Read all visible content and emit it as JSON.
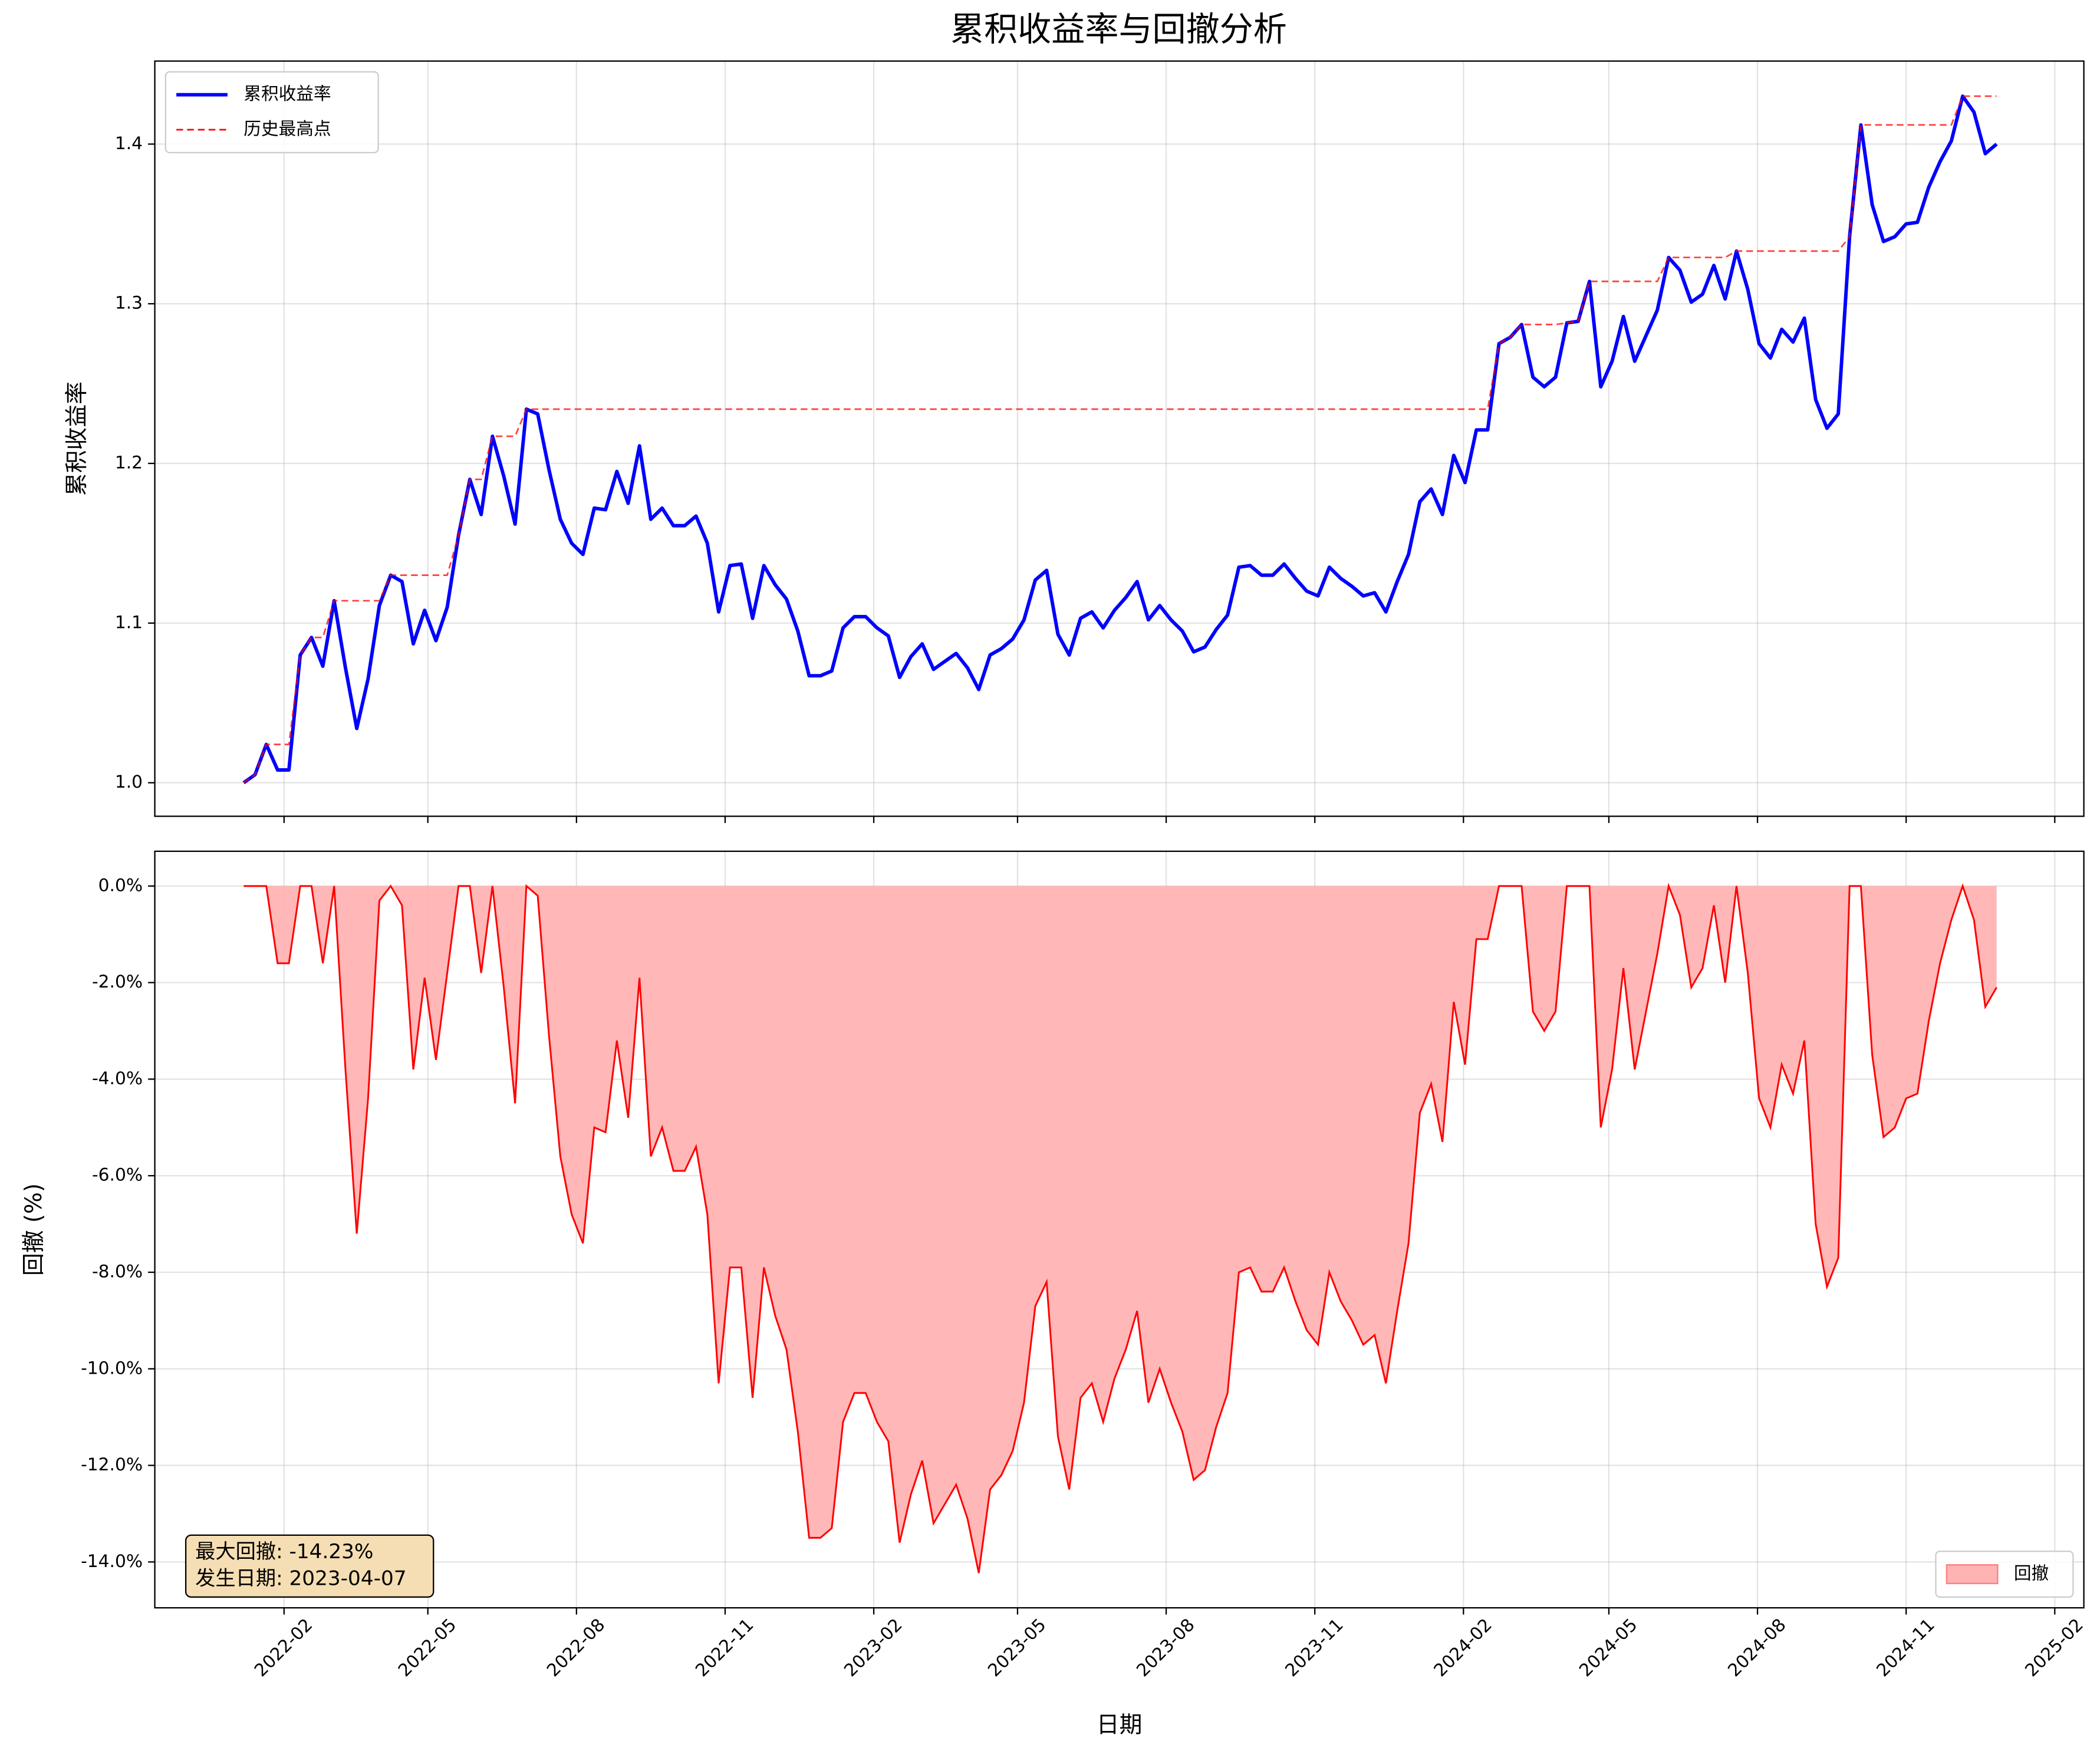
{
  "chart_data": [
    {
      "type": "line",
      "title": "累积收益率与回撤分析",
      "ylabel": "累积收益率",
      "x": [
        "2022-01-07",
        "2022-01-14",
        "2022-01-21",
        "2022-01-28",
        "2022-02-04",
        "2022-02-11",
        "2022-02-18",
        "2022-02-25",
        "2022-03-04",
        "2022-03-11",
        "2022-03-18",
        "2022-03-25",
        "2022-04-01",
        "2022-04-08",
        "2022-04-15",
        "2022-04-22",
        "2022-04-29",
        "2022-05-06",
        "2022-05-13",
        "2022-05-20",
        "2022-05-27",
        "2022-06-03",
        "2022-06-10",
        "2022-06-17",
        "2022-06-24",
        "2022-07-01",
        "2022-07-08",
        "2022-07-15",
        "2022-07-22",
        "2022-07-29",
        "2022-08-05",
        "2022-08-12",
        "2022-08-19",
        "2022-08-26",
        "2022-09-02",
        "2022-09-09",
        "2022-09-16",
        "2022-09-23",
        "2022-09-30",
        "2022-10-07",
        "2022-10-14",
        "2022-10-21",
        "2022-10-28",
        "2022-11-04",
        "2022-11-11",
        "2022-11-18",
        "2022-11-25",
        "2022-12-02",
        "2022-12-09",
        "2022-12-16",
        "2022-12-23",
        "2022-12-30",
        "2023-01-06",
        "2023-01-13",
        "2023-01-20",
        "2023-01-27",
        "2023-02-03",
        "2023-02-10",
        "2023-02-17",
        "2023-02-24",
        "2023-03-03",
        "2023-03-10",
        "2023-03-17",
        "2023-03-24",
        "2023-03-31",
        "2023-04-07",
        "2023-04-14",
        "2023-04-21",
        "2023-04-28",
        "2023-05-05",
        "2023-05-12",
        "2023-05-19",
        "2023-05-26",
        "2023-06-02",
        "2023-06-09",
        "2023-06-16",
        "2023-06-23",
        "2023-06-30",
        "2023-07-07",
        "2023-07-14",
        "2023-07-21",
        "2023-07-28",
        "2023-08-04",
        "2023-08-11",
        "2023-08-18",
        "2023-08-25",
        "2023-09-01",
        "2023-09-08",
        "2023-09-15",
        "2023-09-22",
        "2023-09-29",
        "2023-10-06",
        "2023-10-13",
        "2023-10-20",
        "2023-10-27",
        "2023-11-03",
        "2023-11-10",
        "2023-11-17",
        "2023-11-24",
        "2023-12-01",
        "2023-12-08",
        "2023-12-15",
        "2023-12-22",
        "2023-12-29",
        "2024-01-05",
        "2024-01-12",
        "2024-01-19",
        "2024-01-26",
        "2024-02-02",
        "2024-02-09",
        "2024-02-16",
        "2024-02-23",
        "2024-03-01",
        "2024-03-08",
        "2024-03-15",
        "2024-03-22",
        "2024-03-29",
        "2024-04-05",
        "2024-04-12",
        "2024-04-19",
        "2024-04-26",
        "2024-05-03",
        "2024-05-10",
        "2024-05-17",
        "2024-05-24",
        "2024-05-31",
        "2024-06-07",
        "2024-06-14",
        "2024-06-21",
        "2024-06-28",
        "2024-07-05",
        "2024-07-12",
        "2024-07-19",
        "2024-07-26",
        "2024-08-02",
        "2024-08-09",
        "2024-08-16",
        "2024-08-23",
        "2024-08-30",
        "2024-09-06",
        "2024-09-13",
        "2024-09-20",
        "2024-09-27",
        "2024-10-04",
        "2024-10-11",
        "2024-10-18",
        "2024-10-25",
        "2024-11-01",
        "2024-11-08",
        "2024-11-15",
        "2024-11-22",
        "2024-11-29",
        "2024-12-06",
        "2024-12-13",
        "2024-12-20",
        "2024-12-27"
      ],
      "series": [
        {
          "name": "累积收益率",
          "color": "#0000ff",
          "linestyle": "solid",
          "values": [
            1.0,
            1.005,
            1.024,
            1.008,
            1.008,
            1.08,
            1.091,
            1.073,
            1.114,
            1.072,
            1.034,
            1.065,
            1.111,
            1.13,
            1.126,
            1.087,
            1.108,
            1.089,
            1.11,
            1.155,
            1.19,
            1.168,
            1.217,
            1.192,
            1.162,
            1.234,
            1.231,
            1.196,
            1.165,
            1.15,
            1.143,
            1.172,
            1.171,
            1.195,
            1.175,
            1.211,
            1.165,
            1.172,
            1.161,
            1.161,
            1.167,
            1.15,
            1.107,
            1.136,
            1.137,
            1.103,
            1.136,
            1.124,
            1.115,
            1.095,
            1.067,
            1.067,
            1.07,
            1.097,
            1.104,
            1.104,
            1.097,
            1.092,
            1.066,
            1.079,
            1.087,
            1.071,
            1.076,
            1.081,
            1.072,
            1.0584,
            1.08,
            1.084,
            1.09,
            1.102,
            1.127,
            1.133,
            1.093,
            1.08,
            1.103,
            1.107,
            1.097,
            1.108,
            1.116,
            1.126,
            1.102,
            1.111,
            1.102,
            1.095,
            1.082,
            1.085,
            1.096,
            1.105,
            1.135,
            1.136,
            1.13,
            1.13,
            1.137,
            1.128,
            1.12,
            1.117,
            1.135,
            1.128,
            1.123,
            1.117,
            1.119,
            1.107,
            1.126,
            1.143,
            1.176,
            1.184,
            1.168,
            1.205,
            1.188,
            1.221,
            1.221,
            1.275,
            1.279,
            1.287,
            1.254,
            1.248,
            1.254,
            1.288,
            1.289,
            1.314,
            1.248,
            1.264,
            1.292,
            1.264,
            1.28,
            1.296,
            1.329,
            1.321,
            1.301,
            1.306,
            1.324,
            1.303,
            1.333,
            1.309,
            1.275,
            1.266,
            1.284,
            1.276,
            1.291,
            1.24,
            1.222,
            1.231,
            1.342,
            1.412,
            1.362,
            1.339,
            1.342,
            1.35,
            1.351,
            1.373,
            1.389,
            1.402,
            1.43,
            1.42,
            1.394,
            1.4
          ]
        },
        {
          "name": "历史最高点",
          "color": "#ff0000",
          "linestyle": "dashed",
          "values": [
            1.0,
            1.005,
            1.024,
            1.024,
            1.024,
            1.08,
            1.091,
            1.091,
            1.114,
            1.114,
            1.114,
            1.114,
            1.114,
            1.13,
            1.13,
            1.13,
            1.13,
            1.13,
            1.13,
            1.155,
            1.19,
            1.19,
            1.217,
            1.217,
            1.217,
            1.234,
            1.234,
            1.234,
            1.234,
            1.234,
            1.234,
            1.234,
            1.234,
            1.234,
            1.234,
            1.234,
            1.234,
            1.234,
            1.234,
            1.234,
            1.234,
            1.234,
            1.234,
            1.234,
            1.234,
            1.234,
            1.234,
            1.234,
            1.234,
            1.234,
            1.234,
            1.234,
            1.234,
            1.234,
            1.234,
            1.234,
            1.234,
            1.234,
            1.234,
            1.234,
            1.234,
            1.234,
            1.234,
            1.234,
            1.234,
            1.234,
            1.234,
            1.234,
            1.234,
            1.234,
            1.234,
            1.234,
            1.234,
            1.234,
            1.234,
            1.234,
            1.234,
            1.234,
            1.234,
            1.234,
            1.234,
            1.234,
            1.234,
            1.234,
            1.234,
            1.234,
            1.234,
            1.234,
            1.234,
            1.234,
            1.234,
            1.234,
            1.234,
            1.234,
            1.234,
            1.234,
            1.234,
            1.234,
            1.234,
            1.234,
            1.234,
            1.234,
            1.234,
            1.234,
            1.234,
            1.234,
            1.234,
            1.234,
            1.234,
            1.234,
            1.234,
            1.275,
            1.279,
            1.287,
            1.287,
            1.287,
            1.287,
            1.288,
            1.289,
            1.314,
            1.314,
            1.314,
            1.314,
            1.314,
            1.314,
            1.314,
            1.329,
            1.329,
            1.329,
            1.329,
            1.329,
            1.329,
            1.333,
            1.333,
            1.333,
            1.333,
            1.333,
            1.333,
            1.333,
            1.333,
            1.333,
            1.333,
            1.342,
            1.412,
            1.412,
            1.412,
            1.412,
            1.412,
            1.412,
            1.412,
            1.412,
            1.412,
            1.43,
            1.43,
            1.43,
            1.43
          ]
        }
      ],
      "xlim": [
        "2021-11-13",
        "2025-02-19"
      ],
      "xticks": [
        "2022-02",
        "2022-05",
        "2022-08",
        "2022-11",
        "2023-02",
        "2023-05",
        "2023-08",
        "2023-11",
        "2024-02",
        "2024-05",
        "2024-08",
        "2024-11",
        "2025-02"
      ],
      "ylim": [
        0.979,
        1.452
      ],
      "yticks": [
        {
          "value": 1,
          "label": "1.0"
        },
        1.1,
        1.2,
        1.3,
        1.4
      ],
      "grid": true,
      "legend": "upper left"
    },
    {
      "type": "area",
      "ylabel": "回撤 (%)",
      "xlabel": "日期",
      "series": [
        {
          "name": "回撤",
          "color": "#ff0000",
          "fill": "#ffb3b3",
          "values": [
            0,
            0,
            0,
            -1.6,
            -1.6,
            0,
            0,
            -1.6,
            0,
            -3.8,
            -7.2,
            -4.4,
            -0.3,
            0,
            -0.4,
            -3.8,
            -1.9,
            -3.6,
            -1.8,
            0,
            0,
            -1.8,
            0,
            -2.1,
            -4.5,
            0,
            -0.2,
            -3.1,
            -5.6,
            -6.8,
            -7.4,
            -5.0,
            -5.1,
            -3.2,
            -4.8,
            -1.9,
            -5.6,
            -5.0,
            -5.9,
            -5.9,
            -5.4,
            -6.8,
            -10.3,
            -7.9,
            -7.9,
            -10.6,
            -7.9,
            -8.9,
            -9.6,
            -11.3,
            -13.5,
            -13.5,
            -13.3,
            -11.1,
            -10.5,
            -10.5,
            -11.1,
            -11.5,
            -13.6,
            -12.6,
            -11.9,
            -13.2,
            -12.8,
            -12.4,
            -13.1,
            -14.23,
            -12.5,
            -12.2,
            -11.7,
            -10.7,
            -8.7,
            -8.2,
            -11.4,
            -12.5,
            -10.6,
            -10.3,
            -11.1,
            -10.2,
            -9.6,
            -8.8,
            -10.7,
            -10.0,
            -10.7,
            -11.3,
            -12.3,
            -12.1,
            -11.2,
            -10.5,
            -8.0,
            -7.9,
            -8.4,
            -8.4,
            -7.9,
            -8.6,
            -9.2,
            -9.5,
            -8.0,
            -8.6,
            -9.0,
            -9.5,
            -9.3,
            -10.3,
            -8.8,
            -7.4,
            -4.7,
            -4.1,
            -5.3,
            -2.4,
            -3.7,
            -1.1,
            -1.1,
            0,
            0,
            0,
            -2.6,
            -3.0,
            -2.6,
            0,
            0,
            0,
            -5.0,
            -3.8,
            -1.7,
            -3.8,
            -2.6,
            -1.4,
            0,
            -0.6,
            -2.1,
            -1.7,
            -0.4,
            -2.0,
            0,
            -1.8,
            -4.4,
            -5.0,
            -3.7,
            -4.3,
            -3.2,
            -7.0,
            -8.3,
            -7.7,
            0,
            0,
            -3.5,
            -5.2,
            -5.0,
            -4.4,
            -4.3,
            -2.8,
            -1.6,
            -0.7,
            0,
            -0.7,
            -2.5,
            -2.1
          ]
        }
      ],
      "ylim": [
        -14.95,
        0.72
      ],
      "yticks": [
        {
          "value": 0,
          "label": "0.0%"
        },
        {
          "value": -2,
          "label": "-2.0%"
        },
        {
          "value": -4,
          "label": "-4.0%"
        },
        {
          "value": -6,
          "label": "-6.0%"
        },
        {
          "value": -8,
          "label": "-8.0%"
        },
        {
          "value": -10,
          "label": "-10.0%"
        },
        {
          "value": -12,
          "label": "-12.0%"
        },
        {
          "value": -14,
          "label": "-14.0%"
        }
      ],
      "annotation": [
        "最大回撤: -14.23%",
        "发生日期: 2023-04-07"
      ],
      "grid": true,
      "legend": "lower right"
    }
  ]
}
